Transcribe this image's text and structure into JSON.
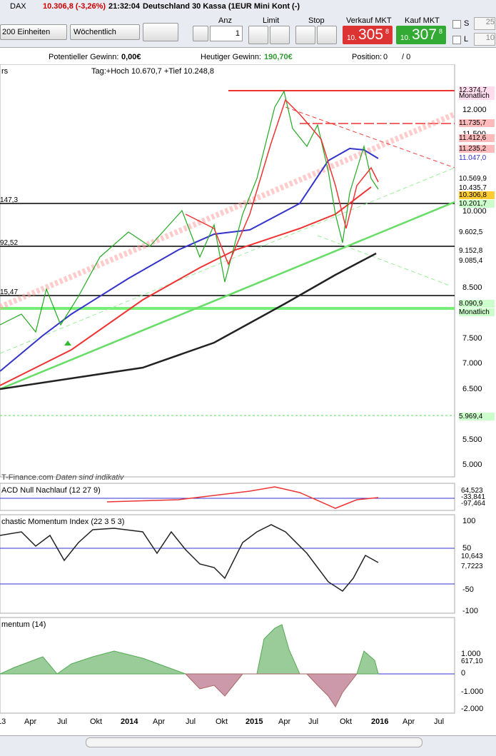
{
  "toolbar": {
    "symbol": "DAX",
    "price": "10.306,8 (-3,26%)",
    "time": "21:32:04",
    "instrument": "Deutschland 30 Kassa (1EUR Mini Kont (-)",
    "units": "200 Einheiten",
    "period": "Wöchentlich",
    "anz_label": "Anz",
    "anz_value": "1",
    "limit_label": "Limit",
    "stop_label": "Stop",
    "sell": {
      "label": "Verkauf MKT",
      "prefix": "10.",
      "main": "305",
      "suffix": "8"
    },
    "buy": {
      "label": "Kauf MKT",
      "prefix": "10.",
      "main": "307",
      "suffix": "8"
    },
    "s_label": "S",
    "s_value": "25",
    "l_label": "L",
    "l_value": "10"
  },
  "info": {
    "potential_label": "Potentieller Gewinn:",
    "potential_value": "0,00€",
    "today_label": "Heutiger Gewinn:",
    "today_value": "190,70€",
    "position_label": "Position:",
    "position_value": "0",
    "position_total": "/ 0"
  },
  "main_chart": {
    "header": "rs",
    "caption": "Tag:+Hoch 10.670,7 +Tief 10.248,8",
    "axis_ticks": [
      "12.000",
      "11.500",
      "10.000",
      "8.500",
      "7.500",
      "7.000",
      "6.500",
      "5.500",
      "5.000"
    ],
    "price_labels": [
      "12.374,7",
      "Monatlich",
      "11.735,7",
      "11.412,6",
      "11.235,2",
      "11.047,0",
      "10.569,9",
      "10.435,7",
      "10.306,8",
      "10.201,7",
      "9.602,5",
      "9.152,8",
      "9.085,4",
      "8.090,9",
      "Monatlich",
      "5.969,4"
    ],
    "left_labels": [
      "147,3",
      "92,52",
      "15,47"
    ],
    "source": "T-Finance.com",
    "disclaimer": "Daten sind indikativ"
  },
  "macd": {
    "title": "ACD Null Nachlauf (12 27 9)",
    "labels": [
      "64,523",
      "-33,841",
      "-97,464"
    ]
  },
  "smi": {
    "title": "chastic Momentum Index (22 3 5 3)",
    "ticks": [
      "100",
      "50",
      "-50",
      "-100"
    ],
    "labels": [
      "10,643",
      "7,7223"
    ]
  },
  "momentum": {
    "title": "mentum (14)",
    "ticks": [
      "1.000",
      "0",
      "-1.000",
      "-2.000"
    ],
    "label": "617,10"
  },
  "x_axis": [
    "13",
    "Apr",
    "Jul",
    "Okt",
    "2014",
    "Apr",
    "Jul",
    "Okt",
    "2015",
    "Apr",
    "Jul",
    "Okt",
    "2016",
    "Apr",
    "Jul"
  ]
}
